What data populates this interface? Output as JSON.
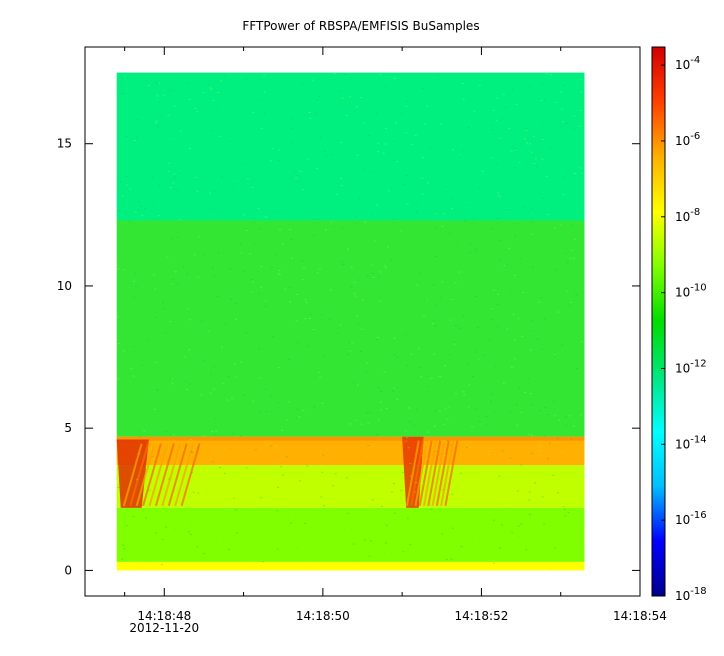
{
  "chart_data": {
    "type": "heatmap",
    "title": "FFTPower of RBSPA/EMFISIS  BuSamples",
    "xlabel": "",
    "ylabel": "",
    "x_axis": {
      "range": [
        "14:18:47.0",
        "14:18:54.0"
      ],
      "ticks": [
        {
          "time": "14:18:48",
          "label": "14:18:48",
          "sublabel": "2012-11-20"
        },
        {
          "time": "14:18:50",
          "label": "14:18:50",
          "sublabel": ""
        },
        {
          "time": "14:18:52",
          "label": "14:18:52",
          "sublabel": ""
        },
        {
          "time": "14:18:54",
          "label": "14:18:54",
          "sublabel": ""
        }
      ],
      "minor_ticks": [
        "14:18:47.5",
        "14:18:49.0",
        "14:18:51.0",
        "14:18:53.0"
      ]
    },
    "y_axis": {
      "range": [
        -0.9,
        18.4
      ],
      "ticks": [
        0,
        5,
        10,
        15
      ]
    },
    "data_extent": {
      "x_start": "14:18:47.4",
      "x_end": "14:18:53.3",
      "y_start": 0,
      "y_end": 17.5
    },
    "colorbar": {
      "scale": "log",
      "range": [
        1e-18,
        0.0003
      ],
      "ticks": [
        {
          "base": "10",
          "exponent": "-4"
        },
        {
          "base": "10",
          "exponent": "-6"
        },
        {
          "base": "10",
          "exponent": "-8"
        },
        {
          "base": "10",
          "exponent": "-10"
        },
        {
          "base": "10",
          "exponent": "-12"
        },
        {
          "base": "10",
          "exponent": "-14"
        },
        {
          "base": "10",
          "exponent": "-16"
        },
        {
          "base": "10",
          "exponent": "-18"
        }
      ],
      "colormap": [
        "#00008b",
        "#0000ff",
        "#00bfff",
        "#00ffff",
        "#00e680",
        "#00dd00",
        "#7fff00",
        "#ffff00",
        "#ffb000",
        "#ff4000",
        "#d00000"
      ]
    },
    "bands": [
      {
        "y_from": 0.0,
        "y_to": 0.3,
        "level": "1e-8",
        "color": "#ffff00"
      },
      {
        "y_from": 0.3,
        "y_to": 2.2,
        "level": "1e-10",
        "color": "#7fff00"
      },
      {
        "y_from": 2.2,
        "y_to": 3.7,
        "level": "1e-9",
        "color": "#bfff00"
      },
      {
        "y_from": 3.7,
        "y_to": 4.7,
        "level": "1e-7",
        "color": "#ffb000"
      },
      {
        "y_from": 4.7,
        "y_to": 12.3,
        "level": "1e-10",
        "color": "#33e633"
      },
      {
        "y_from": 12.3,
        "y_to": 17.5,
        "level": "1e-12",
        "color": "#00f080"
      }
    ],
    "features": [
      {
        "type": "chorus-burst",
        "t_start": "14:18:47.4",
        "t_end": "14:18:48.3",
        "f_low": 2.2,
        "f_high": 4.6,
        "level": "1e-5",
        "color": "#e03000"
      },
      {
        "type": "chorus-burst",
        "t_start": "14:18:51.0",
        "t_end": "14:18:51.6",
        "f_low": 2.2,
        "f_high": 4.7,
        "level": "1e-5",
        "color": "#e83800"
      }
    ]
  }
}
